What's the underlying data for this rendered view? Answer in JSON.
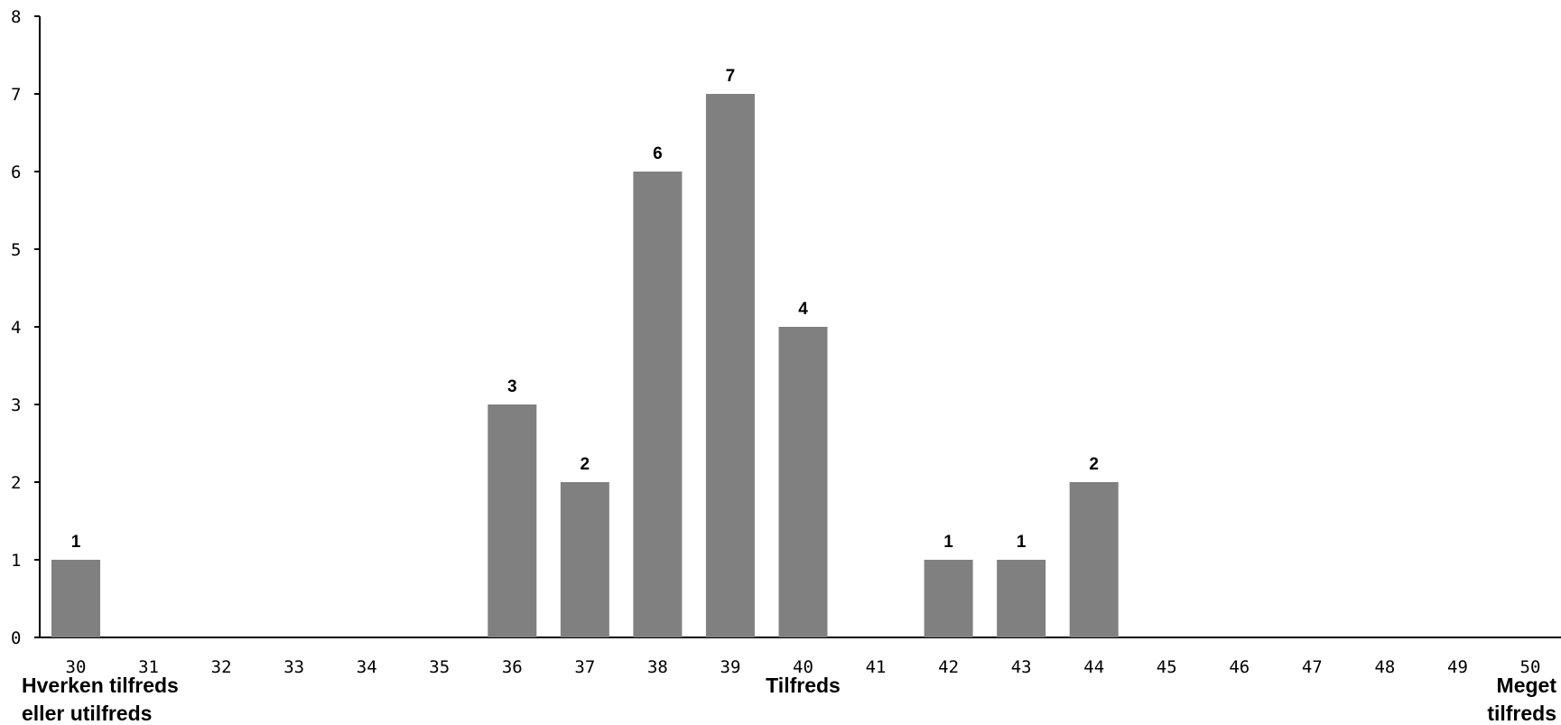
{
  "chart_data": {
    "type": "bar",
    "categories": [
      "30",
      "31",
      "32",
      "33",
      "34",
      "35",
      "36",
      "37",
      "38",
      "39",
      "40",
      "41",
      "42",
      "43",
      "44",
      "45",
      "46",
      "47",
      "48",
      "49",
      "50"
    ],
    "values": [
      1,
      0,
      0,
      0,
      0,
      0,
      3,
      2,
      6,
      7,
      4,
      0,
      1,
      1,
      2,
      0,
      0,
      0,
      0,
      0,
      0
    ],
    "ylim": [
      0,
      8
    ],
    "yticks": [
      "0",
      "1",
      "2",
      "3",
      "4",
      "5",
      "6",
      "7",
      "8"
    ],
    "bar_color": "#808080",
    "grid": false,
    "category_labels": [
      {
        "at": "30",
        "lines": [
          "Hverken tilfreds",
          "eller utilfreds"
        ],
        "anchor": "start"
      },
      {
        "at": "40",
        "lines": [
          "Tilfreds"
        ],
        "anchor": "middle"
      },
      {
        "at": "50",
        "lines": [
          "Meget",
          "tilfreds"
        ],
        "anchor": "end"
      }
    ]
  }
}
